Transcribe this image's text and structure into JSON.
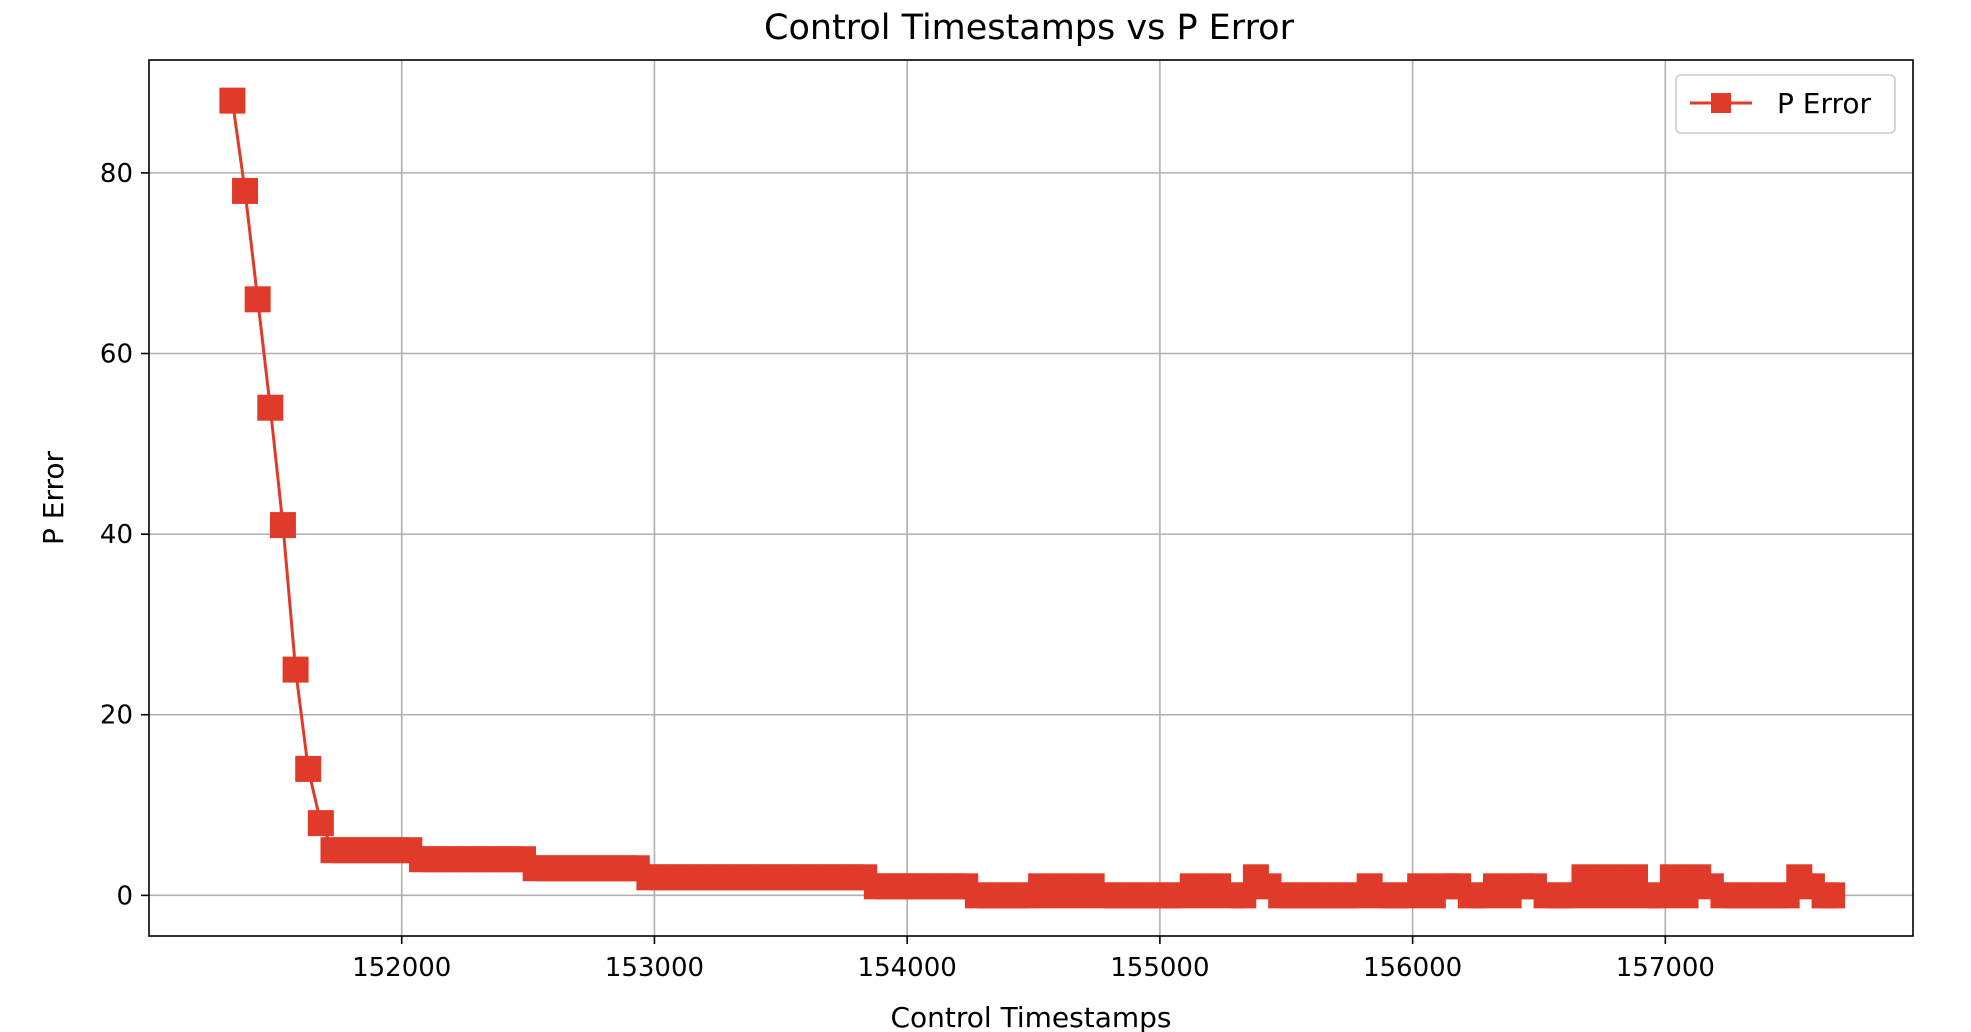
{
  "chart_data": {
    "type": "line",
    "title": "Control Timestamps vs P Error",
    "xlabel": "Control Timestamps",
    "ylabel": "P Error",
    "xlim": [
      151000,
      157980
    ],
    "ylim": [
      -4.5,
      92.5
    ],
    "xticks": [
      152000,
      153000,
      154000,
      155000,
      156000,
      157000
    ],
    "yticks": [
      0,
      20,
      40,
      60,
      80
    ],
    "grid": true,
    "legend_position": "top-right",
    "marker": "square",
    "color": "#e03a2a",
    "series": [
      {
        "name": "P Error",
        "x": [
          151330,
          151380,
          151430,
          151480,
          151530,
          151580,
          151630,
          151680,
          151730,
          151780,
          151830,
          151880,
          151930,
          151980,
          152030,
          152080,
          152130,
          152180,
          152230,
          152280,
          152330,
          152380,
          152430,
          152480,
          152530,
          152580,
          152630,
          152680,
          152730,
          152780,
          152830,
          152880,
          152930,
          152980,
          153030,
          153080,
          153130,
          153180,
          153230,
          153280,
          153330,
          153380,
          153430,
          153480,
          153530,
          153580,
          153630,
          153680,
          153730,
          153780,
          153830,
          153880,
          153930,
          153980,
          154030,
          154080,
          154130,
          154180,
          154230,
          154280,
          154330,
          154380,
          154430,
          154480,
          154530,
          154580,
          154630,
          154680,
          154730,
          154780,
          154830,
          154880,
          154930,
          154980,
          155030,
          155080,
          155130,
          155180,
          155230,
          155280,
          155330,
          155380,
          155430,
          155480,
          155530,
          155580,
          155630,
          155680,
          155730,
          155780,
          155830,
          155880,
          155930,
          155980,
          156030,
          156080,
          156130,
          156180,
          156230,
          156280,
          156330,
          156380,
          156430,
          156480,
          156530,
          156580,
          156630,
          156680,
          156730,
          156780,
          156830,
          156880,
          156930,
          156980,
          157030,
          157080,
          157130,
          157180,
          157230,
          157280,
          157330,
          157380,
          157430,
          157480,
          157530,
          157580,
          157630,
          157660
        ],
        "y": [
          88,
          78,
          66,
          54,
          41,
          25,
          14,
          8,
          5,
          5,
          5,
          5,
          5,
          5,
          5,
          4,
          4,
          4,
          4,
          4,
          4,
          4,
          4,
          4,
          3,
          3,
          3,
          3,
          3,
          3,
          3,
          3,
          3,
          2,
          2,
          2,
          2,
          2,
          2,
          2,
          2,
          2,
          2,
          2,
          2,
          2,
          2,
          2,
          2,
          2,
          2,
          1,
          1,
          1,
          1,
          1,
          1,
          1,
          1,
          0,
          0,
          0,
          0,
          0,
          1,
          0,
          1,
          0,
          1,
          0,
          0,
          0,
          0,
          0,
          0,
          0,
          1,
          0,
          1,
          0,
          0,
          2,
          1,
          0,
          0,
          0,
          0,
          0,
          0,
          0,
          1,
          0,
          0,
          0,
          1,
          0,
          1,
          1,
          0,
          0,
          1,
          0,
          1,
          1,
          0,
          0,
          0,
          2,
          0,
          2,
          0,
          2,
          0,
          0,
          2,
          0,
          2,
          1,
          0,
          0,
          0,
          0,
          0,
          0,
          2,
          1,
          0,
          0
        ]
      }
    ]
  }
}
